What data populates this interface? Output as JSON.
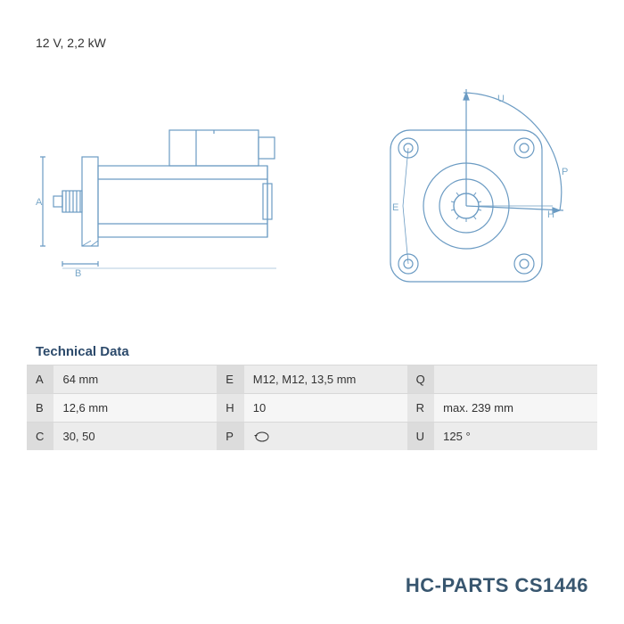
{
  "header_spec": "12 V, 2,2 kW",
  "diagram": {
    "stroke_color": "#6b9bc3",
    "stroke_width": 1.2,
    "label_color": "#7aa8c9",
    "side_labels": {
      "A": "A",
      "B": "B"
    },
    "front_labels": {
      "U": "U",
      "P": "P",
      "E": "E",
      "H": "H"
    }
  },
  "tech_title": "Technical Data",
  "table": {
    "rows": [
      {
        "k1": "A",
        "v1": "64 mm",
        "k2": "E",
        "v2": "M12, M12, 13,5 mm",
        "k3": "Q",
        "v3": ""
      },
      {
        "k1": "B",
        "v1": "12,6 mm",
        "k2": "H",
        "v2": "10",
        "k3": "R",
        "v3": "max. 239 mm"
      },
      {
        "k1": "C",
        "v1": "30, 50",
        "k2": "P",
        "v2": "__rotation__",
        "k3": "U",
        "v3": "125 °"
      }
    ],
    "header_bg": "#ececec",
    "alt_bg": "#f6f6f6",
    "key_bg": "#dcdcdc",
    "border_color": "#d8d8d8"
  },
  "brand": "HC-PARTS CS1446",
  "colors": {
    "brand_text": "#38566f",
    "title_text": "#2c4a6b",
    "body_text": "#333333"
  }
}
